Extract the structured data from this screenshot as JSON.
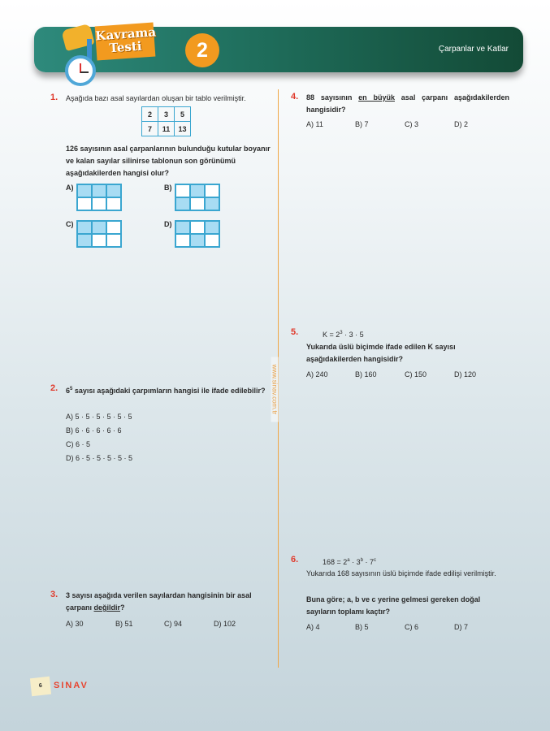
{
  "header": {
    "badge_line1": "Kavrama",
    "badge_line2": "Testi",
    "test_number": "2",
    "topic": "Çarpanlar ve Katlar"
  },
  "colors": {
    "banner": "#1f6e5c",
    "accent": "#f29a1f",
    "question_number": "#e03a2c",
    "cell_fill": "#a8dcf3",
    "cell_border": "#3aa6d0"
  },
  "watermark": "www.sinav.com.tr",
  "footer": {
    "page": "6",
    "brand": "SINAV"
  },
  "q1": {
    "num": "1.",
    "intro": "Aşağıda bazı asal sayılardan oluşan bir tablo verilmiştir.",
    "table": [
      [
        "2",
        "3",
        "5"
      ],
      [
        "7",
        "11",
        "13"
      ]
    ],
    "text": "126 sayısının asal çarpanlarının bulunduğu kutular boyanır ve kalan sayılar silinirse tablonun son görünümü aşağıdakilerden hangisi olur?",
    "options": [
      {
        "label": "A)",
        "cells": [
          true,
          true,
          true,
          false,
          false,
          false
        ]
      },
      {
        "label": "B)",
        "cells": [
          false,
          true,
          false,
          true,
          false,
          true
        ]
      },
      {
        "label": "C)",
        "cells": [
          true,
          true,
          false,
          true,
          false,
          false
        ]
      },
      {
        "label": "D)",
        "cells": [
          true,
          false,
          true,
          false,
          true,
          false
        ]
      }
    ]
  },
  "q2": {
    "num": "2.",
    "base": "6",
    "exp": "5",
    "text": " sayısı aşağıdaki çarpımların hangisi ile ifade edilebilir?",
    "options": [
      "A) 5 · 5 · 5 · 5 · 5 · 5",
      "B) 6 · 6 · 6 · 6 · 6",
      "C) 6 · 5",
      "D) 6 · 5 · 5 · 5 · 5 · 5"
    ]
  },
  "q3": {
    "num": "3.",
    "text": "3 sayısı aşağıda verilen sayılardan hangisinin bir asal çarpanı ",
    "underlined": "değildir",
    "end": "?",
    "options": [
      "A) 30",
      "B) 51",
      "C) 94",
      "D) 102"
    ]
  },
  "q4": {
    "num": "4.",
    "pre": "88 sayısının ",
    "underlined": "en büyük",
    "post": " asal çarpanı aşağıdakilerden hangisidir?",
    "options": [
      "A) 11",
      "B) 7",
      "C) 3",
      "D) 2"
    ]
  },
  "q5": {
    "num": "5.",
    "expr_pre": "K = 2",
    "expr_exp": "3",
    "expr_post": " · 3 · 5",
    "text": "Yukarıda üslü biçimde ifade edilen K sayısı aşağıdakilerden hangisidir?",
    "options": [
      "A) 240",
      "B) 160",
      "C) 150",
      "D) 120"
    ]
  },
  "q6": {
    "num": "6.",
    "expr": [
      "168 = 2",
      "a",
      " · 3",
      "b",
      " · 7",
      "c"
    ],
    "text1": "Yukarıda 168 sayısının üslü biçimde ifade edilişi verilmiştir.",
    "text2": "Buna göre; a, b ve c yerine gelmesi gereken doğal sayıların toplamı kaçtır?",
    "options": [
      "A) 4",
      "B) 5",
      "C) 6",
      "D) 7"
    ]
  }
}
